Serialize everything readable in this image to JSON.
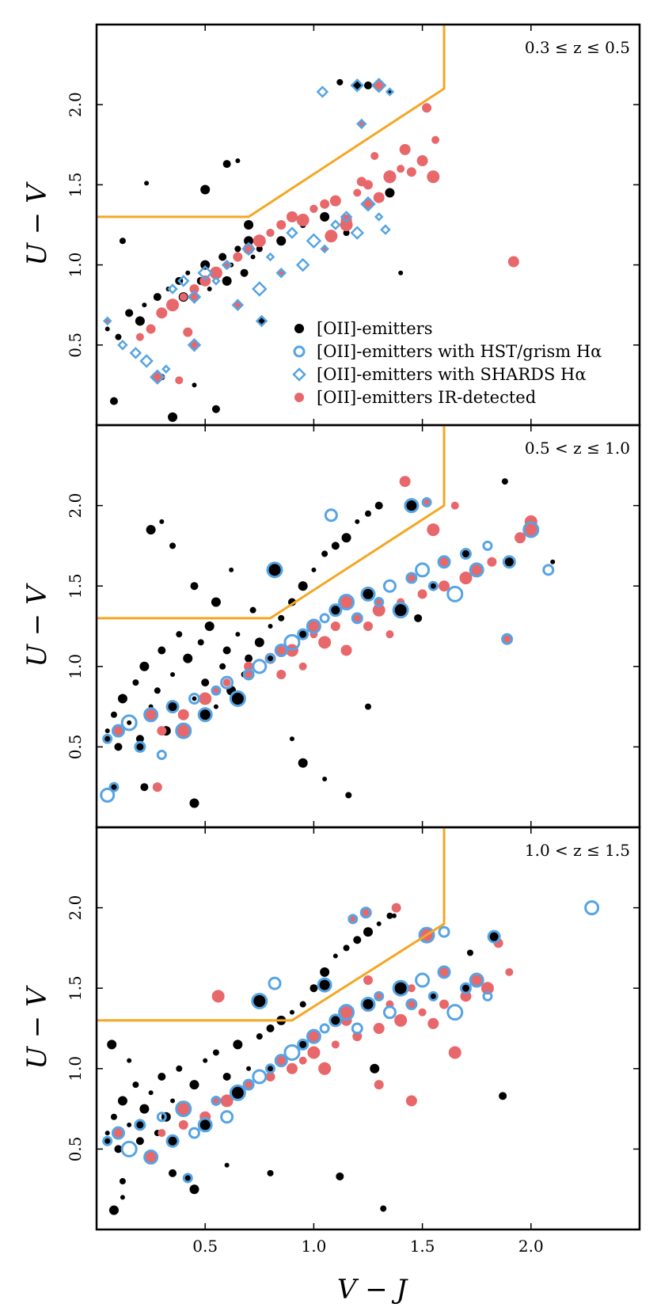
{
  "figure": {
    "xlabel": "V − J",
    "ylabel": "U − V",
    "xlim": [
      0.0,
      2.5
    ],
    "ylim": [
      0.0,
      2.5
    ],
    "xticks": [
      "0.5",
      "1.0",
      "1.5",
      "2.0"
    ],
    "yticks": [
      "0.5",
      "1.0",
      "1.5",
      "2.0"
    ],
    "colors": {
      "black": "#000000",
      "blue": "#56a4e3",
      "red": "#e8676a",
      "orange": "#f5a623"
    }
  },
  "legend": [
    {
      "marker": "dot",
      "label": "[OII]-emitters"
    },
    {
      "marker": "ring",
      "label": "[OII]-emitters with HST/grism Hα"
    },
    {
      "marker": "diamond",
      "label": "[OII]-emitters with SHARDS Hα"
    },
    {
      "marker": "reddot",
      "label": "[OII]-emitters IR-detected"
    }
  ],
  "chart_data": [
    {
      "type": "scatter",
      "panel_label": "0.3 ≤ z ≤ 0.5",
      "xlabel": "",
      "ylabel": "U − V",
      "xlim": [
        0.0,
        2.5
      ],
      "ylim": [
        0.0,
        2.5
      ],
      "quiescent_boundary": [
        [
          0.0,
          1.3
        ],
        [
          0.7,
          1.3
        ],
        [
          1.6,
          2.1
        ],
        [
          1.6,
          2.5
        ]
      ],
      "series": [
        {
          "name": "[OII]-emitters",
          "marker": "dot",
          "x": [
            0.05,
            0.1,
            0.15,
            0.2,
            0.22,
            0.25,
            0.28,
            0.3,
            0.33,
            0.35,
            0.38,
            0.4,
            0.42,
            0.45,
            0.48,
            0.5,
            0.52,
            0.55,
            0.58,
            0.6,
            0.62,
            0.65,
            0.68,
            0.7,
            0.72,
            0.75,
            0.8,
            0.85,
            0.9,
            0.95,
            1.0,
            1.05,
            1.1,
            1.15,
            0.6,
            0.5,
            0.23,
            0.12,
            0.08,
            0.35,
            0.45,
            0.3,
            0.55,
            0.7,
            0.65,
            1.12,
            1.25,
            1.35,
            1.4
          ],
          "y": [
            0.6,
            0.55,
            0.7,
            0.65,
            0.75,
            0.6,
            0.8,
            0.7,
            0.85,
            0.75,
            0.9,
            0.8,
            0.95,
            0.85,
            0.9,
            1.0,
            0.85,
            0.95,
            1.05,
            0.9,
            1.0,
            1.1,
            0.95,
            1.15,
            1.05,
            1.1,
            1.2,
            1.15,
            1.3,
            1.25,
            1.35,
            1.3,
            1.4,
            1.2,
            1.63,
            1.47,
            1.51,
            1.15,
            0.15,
            0.05,
            0.25,
            0.3,
            0.1,
            1.25,
            1.65,
            2.14,
            2.12,
            1.45,
            0.95
          ]
        },
        {
          "name": "[OII]-emitters with HST/grism Hα",
          "marker": "ring",
          "x": [],
          "y": []
        },
        {
          "name": "[OII]-emitters with SHARDS Hα",
          "marker": "diamond",
          "x": [
            0.05,
            0.12,
            0.18,
            0.23,
            0.28,
            0.32,
            0.35,
            0.4,
            0.45,
            0.5,
            0.55,
            0.6,
            0.65,
            0.7,
            0.75,
            0.8,
            0.85,
            0.9,
            0.95,
            1.0,
            1.05,
            1.1,
            1.15,
            1.2,
            1.25,
            1.3,
            1.33,
            1.04,
            1.2,
            1.3,
            1.35,
            1.22,
            0.76,
            0.45
          ],
          "y": [
            0.65,
            0.5,
            0.45,
            0.4,
            0.3,
            0.35,
            0.85,
            0.9,
            0.8,
            0.95,
            0.9,
            1.0,
            0.75,
            1.1,
            0.85,
            1.05,
            0.95,
            1.2,
            1.0,
            1.15,
            1.1,
            1.25,
            1.3,
            1.2,
            1.38,
            1.3,
            1.22,
            2.08,
            2.12,
            2.12,
            2.08,
            1.88,
            0.65,
            0.5
          ]
        },
        {
          "name": "[OII]-emitters IR-detected",
          "marker": "reddot",
          "x": [
            0.2,
            0.25,
            0.3,
            0.35,
            0.4,
            0.45,
            0.5,
            0.55,
            0.6,
            0.65,
            0.7,
            0.75,
            0.8,
            0.85,
            0.9,
            0.95,
            1.0,
            1.05,
            1.1,
            1.15,
            1.2,
            1.25,
            1.3,
            1.35,
            1.4,
            1.45,
            1.5,
            1.55,
            1.56,
            1.52,
            1.42,
            1.35,
            1.28,
            1.22,
            1.15,
            1.08,
            0.38,
            0.42,
            1.92
          ],
          "y": [
            0.55,
            0.6,
            0.7,
            0.75,
            0.8,
            0.85,
            0.9,
            0.95,
            1.0,
            1.05,
            1.1,
            1.15,
            1.2,
            1.25,
            1.3,
            1.28,
            1.35,
            1.38,
            1.4,
            1.25,
            1.45,
            1.5,
            1.42,
            1.55,
            1.6,
            1.58,
            1.65,
            1.55,
            1.78,
            1.98,
            1.72,
            1.55,
            1.68,
            1.52,
            1.28,
            1.18,
            0.28,
            0.58,
            1.02
          ]
        }
      ]
    },
    {
      "type": "scatter",
      "panel_label": "0.5 < z ≤ 1.0",
      "xlabel": "",
      "ylabel": "U − V",
      "xlim": [
        0.0,
        2.5
      ],
      "ylim": [
        0.0,
        2.5
      ],
      "quiescent_boundary": [
        [
          0.0,
          1.3
        ],
        [
          0.8,
          1.3
        ],
        [
          1.6,
          2.0
        ],
        [
          1.6,
          2.5
        ]
      ],
      "series": [
        {
          "name": "[OII]-emitters",
          "marker": "dot",
          "x": [
            0.05,
            0.08,
            0.1,
            0.12,
            0.15,
            0.18,
            0.2,
            0.22,
            0.25,
            0.28,
            0.3,
            0.32,
            0.35,
            0.38,
            0.4,
            0.42,
            0.45,
            0.48,
            0.5,
            0.52,
            0.55,
            0.58,
            0.6,
            0.62,
            0.65,
            0.68,
            0.7,
            0.75,
            0.8,
            0.85,
            0.9,
            0.95,
            1.0,
            1.05,
            1.1,
            1.15,
            1.2,
            1.25,
            1.3,
            0.25,
            0.3,
            0.35,
            0.45,
            0.55,
            0.62,
            0.72,
            0.85,
            0.95,
            1.05,
            1.16,
            1.48,
            1.95,
            2.1,
            1.88,
            0.22,
            0.45,
            0.9,
            1.25
          ],
          "y": [
            0.6,
            0.7,
            0.5,
            0.8,
            0.65,
            0.9,
            0.55,
            1.0,
            0.75,
            0.85,
            1.1,
            0.6,
            0.95,
            1.2,
            0.7,
            1.05,
            0.8,
            1.15,
            0.9,
            1.25,
            0.75,
            1.0,
            1.1,
            0.85,
            1.2,
            0.95,
            1.05,
            1.15,
            1.25,
            1.3,
            1.4,
            1.5,
            1.6,
            1.7,
            1.75,
            1.8,
            1.9,
            1.95,
            2.0,
            1.85,
            1.9,
            1.75,
            1.5,
            1.4,
            1.6,
            1.35,
            1.1,
            0.4,
            0.3,
            0.2,
            1.3,
            1.8,
            1.65,
            2.15,
            0.25,
            0.15,
            0.55,
            0.75
          ]
        },
        {
          "name": "[OII]-emitters with HST/grism Hα",
          "marker": "ring",
          "x": [
            0.05,
            0.1,
            0.15,
            0.2,
            0.25,
            0.3,
            0.35,
            0.4,
            0.45,
            0.5,
            0.55,
            0.6,
            0.65,
            0.7,
            0.75,
            0.8,
            0.85,
            0.9,
            0.95,
            1.0,
            1.05,
            1.1,
            1.15,
            1.2,
            1.25,
            1.3,
            1.35,
            1.4,
            1.45,
            1.5,
            1.55,
            1.6,
            1.65,
            1.7,
            1.75,
            1.8,
            1.9,
            2.0,
            2.08,
            1.45,
            1.52,
            1.08,
            0.82,
            1.89,
            0.05,
            0.08
          ],
          "y": [
            0.55,
            0.6,
            0.65,
            0.5,
            0.7,
            0.45,
            0.75,
            0.6,
            0.8,
            0.7,
            0.85,
            0.9,
            0.8,
            0.95,
            1.0,
            1.05,
            1.1,
            1.15,
            1.2,
            1.25,
            1.3,
            1.35,
            1.4,
            1.3,
            1.45,
            1.4,
            1.5,
            1.35,
            1.55,
            1.6,
            1.5,
            1.65,
            1.45,
            1.7,
            1.6,
            1.75,
            1.65,
            1.85,
            1.6,
            2.0,
            2.02,
            1.94,
            1.6,
            1.17,
            0.2,
            0.25
          ]
        },
        {
          "name": "[OII]-emitters with SHARDS Hα",
          "marker": "diamond",
          "x": [],
          "y": []
        },
        {
          "name": "[OII]-emitters IR-detected",
          "marker": "reddot",
          "x": [
            0.2,
            0.3,
            0.4,
            0.5,
            0.6,
            0.7,
            0.8,
            0.9,
            1.0,
            1.1,
            1.2,
            1.3,
            1.4,
            1.5,
            1.6,
            1.7,
            1.75,
            1.82,
            1.95,
            2.0,
            1.35,
            1.25,
            1.15,
            1.05,
            0.95,
            0.85,
            1.42,
            1.55,
            1.65,
            0.28
          ],
          "y": [
            0.5,
            0.6,
            0.7,
            0.8,
            0.9,
            1.0,
            1.05,
            1.1,
            1.2,
            1.25,
            1.3,
            1.35,
            1.4,
            1.45,
            1.5,
            1.55,
            1.6,
            1.65,
            1.8,
            1.9,
            1.2,
            1.25,
            1.1,
            1.15,
            1.0,
            0.95,
            2.15,
            1.85,
            2.0,
            0.25
          ]
        }
      ]
    },
    {
      "type": "scatter",
      "panel_label": "1.0 < z ≤ 1.5",
      "xlabel": "V − J",
      "ylabel": "U − V",
      "xlim": [
        0.0,
        2.5
      ],
      "ylim": [
        0.0,
        2.5
      ],
      "quiescent_boundary": [
        [
          0.0,
          1.3
        ],
        [
          0.9,
          1.3
        ],
        [
          1.6,
          1.9
        ],
        [
          1.6,
          2.5
        ]
      ],
      "series": [
        {
          "name": "[OII]-emitters",
          "marker": "dot",
          "x": [
            0.05,
            0.08,
            0.1,
            0.12,
            0.15,
            0.18,
            0.2,
            0.22,
            0.25,
            0.28,
            0.3,
            0.32,
            0.35,
            0.38,
            0.4,
            0.45,
            0.5,
            0.55,
            0.6,
            0.65,
            0.7,
            0.75,
            0.8,
            0.85,
            0.9,
            0.95,
            1.0,
            1.05,
            1.1,
            1.15,
            1.2,
            1.25,
            1.3,
            1.35,
            1.4,
            0.07,
            0.15,
            0.12,
            0.35,
            0.45,
            0.6,
            0.8,
            1.12,
            1.28,
            1.37,
            1.72,
            1.87,
            0.08,
            0.12,
            1.32
          ],
          "y": [
            0.6,
            0.7,
            0.5,
            0.8,
            0.65,
            0.9,
            0.55,
            0.75,
            0.85,
            0.6,
            0.95,
            0.7,
            0.8,
            1.0,
            0.65,
            0.9,
            1.05,
            1.1,
            0.95,
            1.15,
            1.0,
            1.2,
            1.25,
            1.3,
            1.35,
            1.4,
            1.5,
            1.6,
            1.7,
            1.75,
            1.8,
            1.85,
            1.9,
            1.95,
            1.5,
            1.15,
            1.05,
            0.3,
            0.35,
            0.25,
            0.4,
            0.35,
            0.33,
            1.0,
            1.95,
            1.72,
            0.83,
            0.12,
            0.2,
            0.13
          ]
        },
        {
          "name": "[OII]-emitters with HST/grism Hα",
          "marker": "ring",
          "x": [
            0.05,
            0.1,
            0.15,
            0.2,
            0.25,
            0.3,
            0.35,
            0.4,
            0.45,
            0.5,
            0.55,
            0.6,
            0.65,
            0.7,
            0.75,
            0.8,
            0.85,
            0.9,
            0.95,
            1.0,
            1.05,
            1.1,
            1.15,
            1.2,
            1.25,
            1.3,
            1.35,
            1.4,
            1.45,
            1.5,
            1.55,
            1.6,
            1.65,
            1.7,
            1.75,
            1.8,
            1.83,
            1.52,
            1.6,
            1.05,
            1.18,
            0.82,
            0.75,
            1.24,
            2.28,
            0.42
          ],
          "y": [
            0.55,
            0.6,
            0.5,
            0.65,
            0.45,
            0.7,
            0.55,
            0.75,
            0.6,
            0.65,
            0.8,
            0.7,
            0.85,
            0.9,
            0.95,
            1.0,
            1.05,
            1.1,
            1.15,
            1.2,
            1.25,
            1.3,
            1.35,
            1.25,
            1.4,
            1.45,
            1.35,
            1.5,
            1.4,
            1.55,
            1.45,
            1.6,
            1.35,
            1.5,
            1.55,
            1.45,
            1.82,
            1.83,
            1.85,
            1.52,
            1.93,
            1.53,
            1.42,
            1.97,
            2.0,
            0.32
          ]
        },
        {
          "name": "[OII]-emitters with SHARDS Hα",
          "marker": "diamond",
          "x": [],
          "y": []
        },
        {
          "name": "[OII]-emitters IR-detected",
          "marker": "reddot",
          "x": [
            0.3,
            0.4,
            0.5,
            0.6,
            0.7,
            0.8,
            0.9,
            1.0,
            1.1,
            1.2,
            1.3,
            1.4,
            1.5,
            1.6,
            1.7,
            1.8,
            1.9,
            1.85,
            1.45,
            0.56,
            1.35,
            1.25,
            1.15,
            1.05,
            0.95,
            1.38,
            1.55,
            1.65,
            1.45,
            1.3
          ],
          "y": [
            0.6,
            0.65,
            0.7,
            0.8,
            0.9,
            0.95,
            1.0,
            1.1,
            1.15,
            1.2,
            1.25,
            1.3,
            1.35,
            1.4,
            1.45,
            1.5,
            1.6,
            1.78,
            0.8,
            1.45,
            1.4,
            1.55,
            1.3,
            1.0,
            1.05,
            2.0,
            1.28,
            1.1,
            1.5,
            0.9
          ]
        }
      ]
    }
  ]
}
